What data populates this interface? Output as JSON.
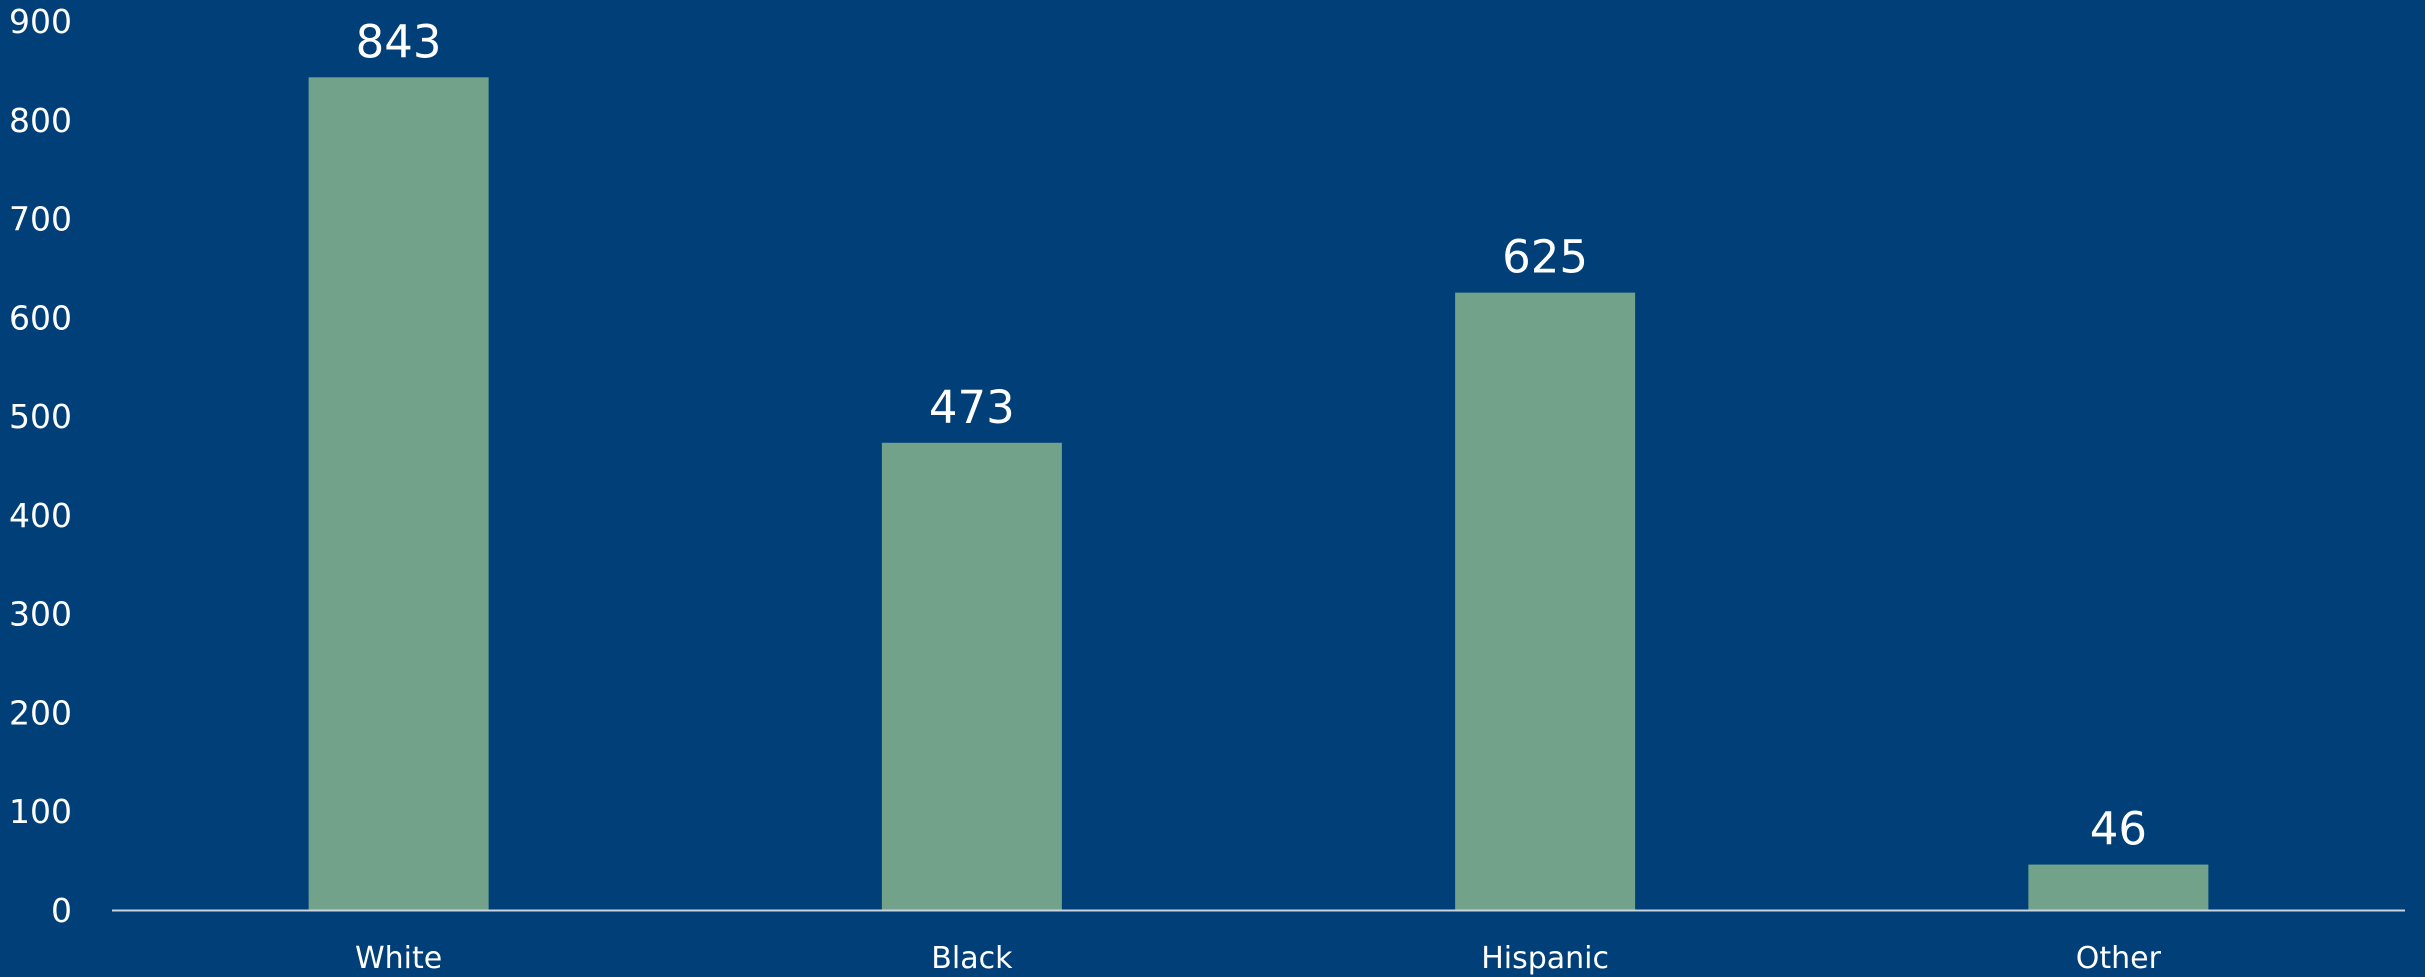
{
  "chart_data": {
    "type": "bar",
    "categories": [
      "White",
      "Black",
      "Hispanic",
      "Other"
    ],
    "values": [
      843,
      473,
      625,
      46
    ],
    "data_labels": [
      "843",
      "473",
      "625",
      "46"
    ],
    "y_ticks": [
      "0",
      "100",
      "200",
      "300",
      "400",
      "500",
      "600",
      "700",
      "800",
      "900"
    ],
    "ylim": [
      0,
      900
    ],
    "grid": false,
    "legend": "none",
    "title": "",
    "xlabel": "",
    "ylabel": "",
    "colors": {
      "background": "#003f77",
      "bar": "#72a38a",
      "axis": "#c9d3dd",
      "text": "#ffffff"
    }
  }
}
